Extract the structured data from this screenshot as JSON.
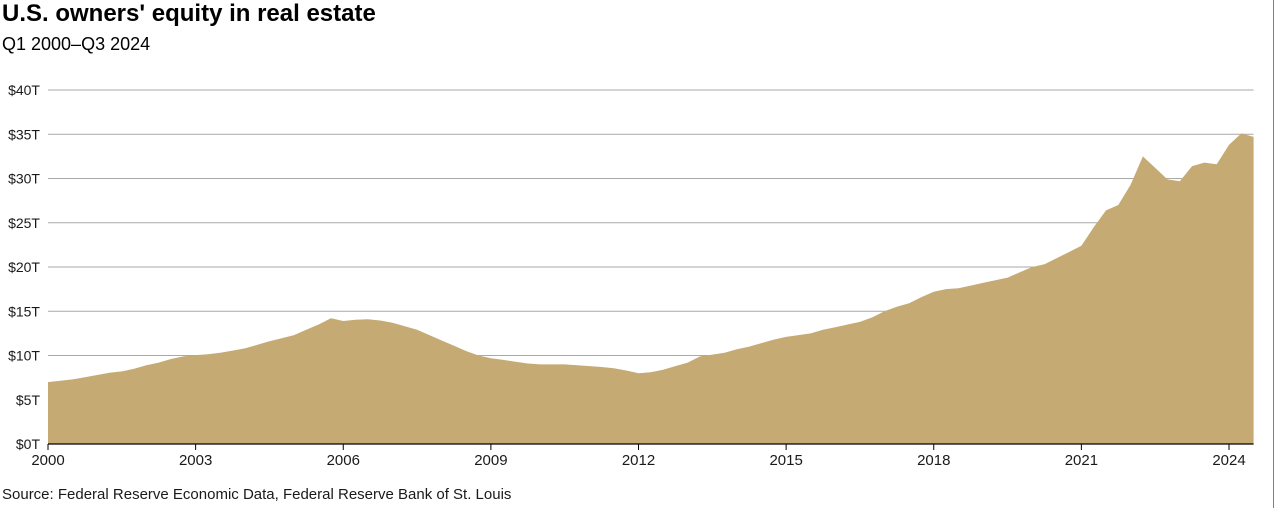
{
  "header": {
    "title": "U.S. owners' equity in real estate",
    "subtitle": "Q1 2000–Q3 2024"
  },
  "source_note": "Source: Federal Reserve Economic Data, Federal Reserve Bank of St. Louis",
  "colors": {
    "area": "#C5AA73",
    "gridline": "#A9A9A9",
    "axis": "#000000",
    "label_text": "#1a1a1a",
    "divider": "#808080",
    "background": "#ffffff"
  },
  "chart_data": {
    "type": "area",
    "title": "U.S. owners' equity in real estate",
    "subtitle": "Q1 2000–Q3 2024",
    "unit": "trillions of U.S. dollars",
    "x_start": 2000.0,
    "x_step": 0.25,
    "x_end": 2024.5,
    "xlim": [
      2000,
      2024.5
    ],
    "ylim": [
      0,
      40
    ],
    "grid": "horizontal",
    "legend": "none",
    "x_tick_years": [
      2000,
      2003,
      2006,
      2009,
      2012,
      2015,
      2018,
      2021,
      2024
    ],
    "x_tick_labels": [
      "2000",
      "2003",
      "2006",
      "2009",
      "2012",
      "2015",
      "2018",
      "2021",
      "2024"
    ],
    "y_ticks": [
      0,
      5,
      10,
      15,
      20,
      25,
      30,
      35,
      40
    ],
    "y_tick_labels": [
      "$0T",
      "$5T",
      "$10T",
      "$15T",
      "$20T",
      "$25T",
      "$30T",
      "$35T",
      "$40T"
    ],
    "series": [
      {
        "name": "Owners' equity in real estate",
        "color": "#C5AA73",
        "values": [
          7.0,
          7.15,
          7.3,
          7.55,
          7.8,
          8.05,
          8.2,
          8.5,
          8.9,
          9.2,
          9.6,
          9.9,
          10.05,
          10.15,
          10.3,
          10.55,
          10.8,
          11.2,
          11.6,
          11.95,
          12.3,
          12.9,
          13.5,
          14.2,
          13.9,
          14.05,
          14.1,
          13.95,
          13.7,
          13.3,
          12.9,
          12.3,
          11.7,
          11.1,
          10.5,
          10.0,
          9.7,
          9.5,
          9.3,
          9.1,
          9.0,
          9.0,
          9.0,
          8.9,
          8.8,
          8.7,
          8.55,
          8.3,
          8.0,
          8.1,
          8.4,
          8.8,
          9.2,
          9.9,
          10.1,
          10.3,
          10.7,
          11.0,
          11.4,
          11.8,
          12.1,
          12.3,
          12.5,
          12.9,
          13.2,
          13.5,
          13.8,
          14.3,
          15.0,
          15.5,
          15.9,
          16.6,
          17.2,
          17.5,
          17.6,
          17.9,
          18.2,
          18.5,
          18.8,
          19.4,
          20.0,
          20.3,
          21.0,
          21.7,
          22.4,
          24.5,
          26.4,
          27.0,
          29.3,
          32.5,
          31.2,
          29.9,
          29.7,
          31.4,
          31.8,
          31.6,
          33.8,
          35.1,
          34.7
        ]
      }
    ]
  }
}
